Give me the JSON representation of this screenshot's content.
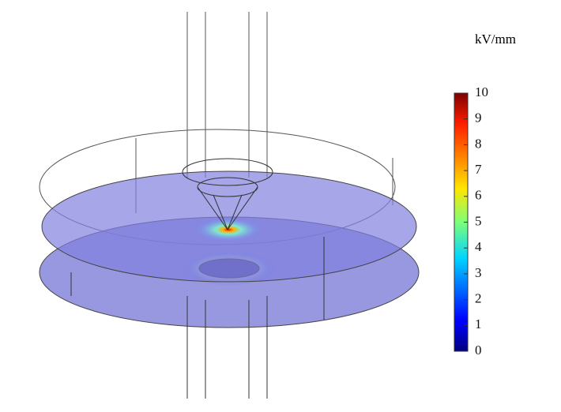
{
  "colorbar": {
    "unit": "kV/mm",
    "ticks": [
      0,
      1,
      2,
      3,
      4,
      5,
      6,
      7,
      8,
      9,
      10
    ]
  }
}
